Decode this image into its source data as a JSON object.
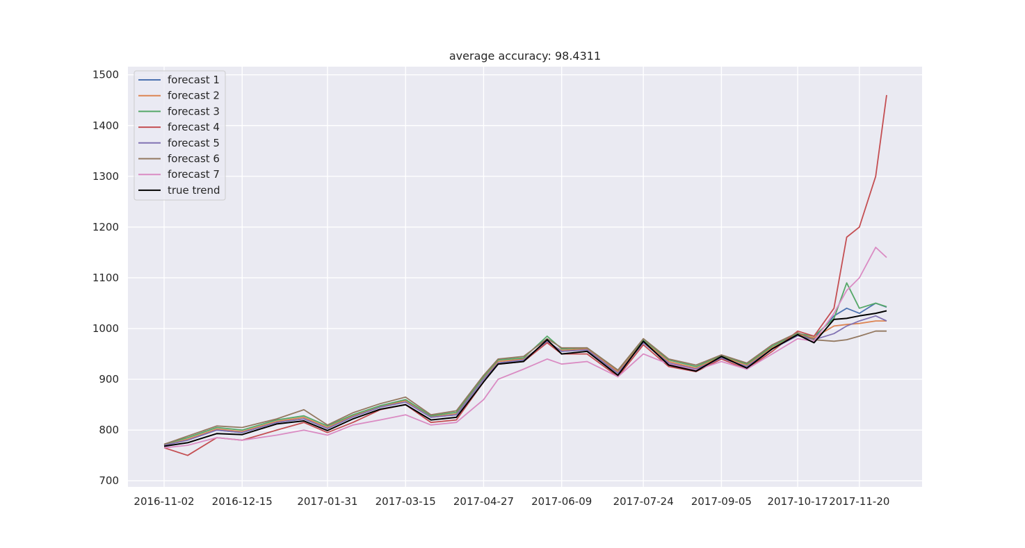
{
  "chart_data": {
    "type": "line",
    "title": "average accuracy: 98.4311",
    "xlabel": "",
    "ylabel": "",
    "x_tick_labels": [
      "2016-11-02",
      "2016-12-15",
      "2017-01-31",
      "2017-03-15",
      "2017-04-27",
      "2017-06-09",
      "2017-07-24",
      "2017-09-05",
      "2017-10-17",
      "2017-11-20"
    ],
    "yticks": [
      700,
      800,
      900,
      1000,
      1100,
      1200,
      1300,
      1400,
      1500
    ],
    "ylim": [
      688,
      1516
    ],
    "grid": true,
    "legend_position": "upper-left",
    "colors": {
      "background": "#EAEAF2",
      "grid": "#FFFFFF",
      "forecast 1": "#4C72B0",
      "forecast 2": "#DD8452",
      "forecast 3": "#55A868",
      "forecast 4": "#C44E52",
      "forecast 5": "#8172B3",
      "forecast 6": "#937860",
      "forecast 7": "#DA8BC3",
      "true trend": "#000000"
    },
    "x_dates": [
      "2016-11-02",
      "2016-11-15",
      "2016-12-01",
      "2016-12-15",
      "2017-01-03",
      "2017-01-18",
      "2017-01-31",
      "2017-02-14",
      "2017-03-01",
      "2017-03-15",
      "2017-03-29",
      "2017-04-12",
      "2017-04-27",
      "2017-05-05",
      "2017-05-19",
      "2017-06-01",
      "2017-06-09",
      "2017-06-23",
      "2017-07-10",
      "2017-07-24",
      "2017-08-07",
      "2017-08-22",
      "2017-09-05",
      "2017-09-19",
      "2017-10-03",
      "2017-10-17",
      "2017-10-26",
      "2017-11-06",
      "2017-11-13",
      "2017-11-20",
      "2017-11-29",
      "2017-12-05"
    ],
    "series": [
      {
        "name": "true trend",
        "values": [
          768,
          775,
          793,
          791,
          812,
          818,
          799,
          822,
          841,
          850,
          820,
          825,
          895,
          930,
          935,
          978,
          950,
          955,
          908,
          975,
          928,
          916,
          945,
          922,
          960,
          988,
          972,
          1018,
          1020,
          1025,
          1030,
          1035
        ]
      },
      {
        "name": "forecast 1",
        "values": [
          770,
          780,
          800,
          795,
          815,
          822,
          803,
          826,
          845,
          855,
          825,
          830,
          900,
          932,
          938,
          975,
          955,
          958,
          912,
          972,
          932,
          920,
          942,
          925,
          960,
          986,
          980,
          1025,
          1040,
          1030,
          1050,
          1042
        ]
      },
      {
        "name": "forecast 2",
        "values": [
          770,
          782,
          802,
          797,
          817,
          825,
          805,
          828,
          846,
          858,
          826,
          832,
          902,
          935,
          940,
          972,
          957,
          960,
          915,
          975,
          935,
          922,
          945,
          928,
          962,
          988,
          982,
          1005,
          1008,
          1010,
          1015,
          1015
        ]
      },
      {
        "name": "forecast 3",
        "values": [
          772,
          785,
          805,
          800,
          820,
          828,
          808,
          830,
          848,
          860,
          828,
          835,
          905,
          938,
          942,
          985,
          960,
          962,
          918,
          978,
          938,
          925,
          947,
          930,
          965,
          990,
          985,
          1020,
          1090,
          1040,
          1050,
          1043
        ]
      },
      {
        "name": "forecast 4",
        "values": [
          765,
          750,
          785,
          780,
          800,
          815,
          795,
          815,
          840,
          850,
          815,
          820,
          895,
          930,
          935,
          972,
          950,
          950,
          905,
          968,
          925,
          915,
          940,
          920,
          955,
          995,
          985,
          1040,
          1180,
          1200,
          1300,
          1460
        ]
      },
      {
        "name": "forecast 5",
        "values": [
          770,
          780,
          800,
          795,
          815,
          822,
          803,
          826,
          845,
          855,
          825,
          830,
          900,
          932,
          938,
          975,
          955,
          958,
          912,
          972,
          932,
          920,
          942,
          925,
          960,
          986,
          978,
          990,
          1005,
          1015,
          1025,
          1015
        ]
      },
      {
        "name": "forecast 6",
        "values": [
          772,
          788,
          808,
          805,
          822,
          840,
          810,
          834,
          852,
          865,
          830,
          838,
          908,
          940,
          945,
          980,
          962,
          962,
          918,
          980,
          940,
          928,
          948,
          932,
          968,
          992,
          978,
          975,
          978,
          985,
          995,
          995
        ]
      },
      {
        "name": "forecast 7",
        "values": [
          765,
          770,
          785,
          780,
          790,
          800,
          790,
          810,
          820,
          830,
          810,
          815,
          860,
          900,
          920,
          940,
          930,
          935,
          905,
          950,
          930,
          918,
          935,
          920,
          950,
          980,
          975,
          1030,
          1075,
          1100,
          1160,
          1140
        ]
      }
    ]
  }
}
